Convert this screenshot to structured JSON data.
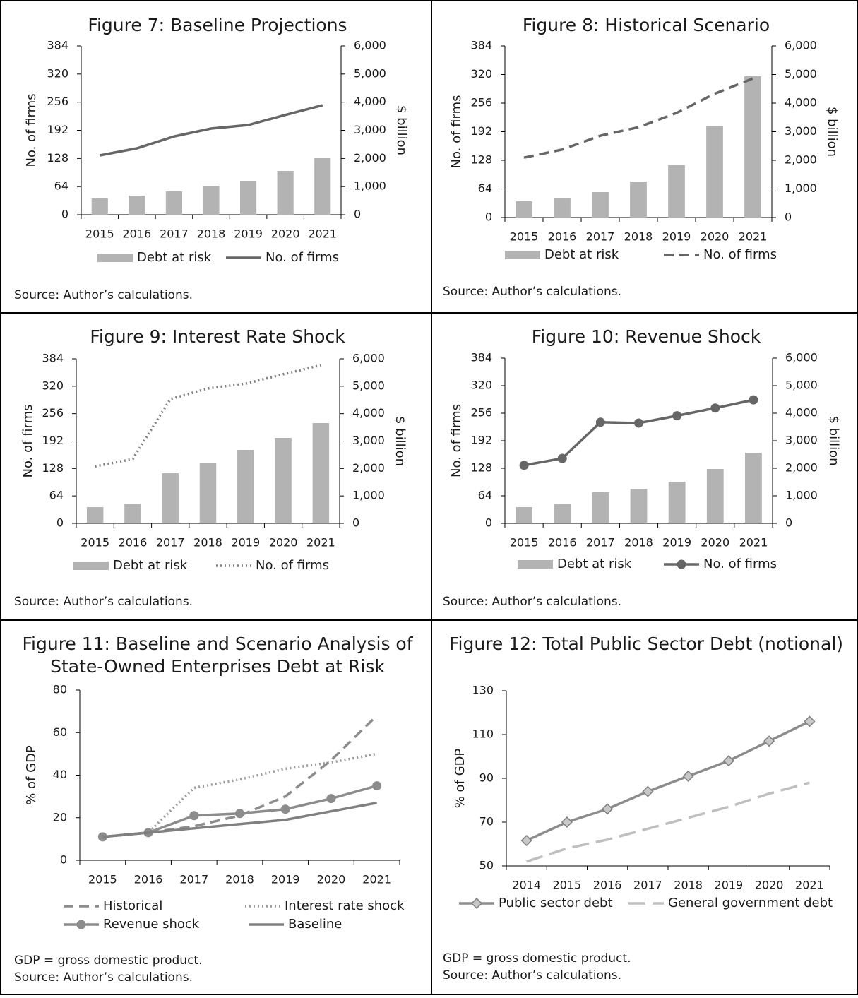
{
  "chart_data": [
    {
      "type": "combo",
      "title_lines": [
        "Figure 7: Baseline Projections"
      ],
      "categories": [
        "2015",
        "2016",
        "2017",
        "2018",
        "2019",
        "2020",
        "2021"
      ],
      "ylabel": "No. of firms",
      "y2label": "$ billion",
      "ylim": [
        0,
        384
      ],
      "yticks": [
        0,
        64,
        128,
        192,
        256,
        320,
        384
      ],
      "y2lim": [
        0,
        6000
      ],
      "y2ticks": [
        0,
        {
          "value": 1000,
          "label": "1,000"
        },
        {
          "value": 2000,
          "label": "2,000"
        },
        {
          "value": 3000,
          "label": "3,000"
        },
        {
          "value": 4000,
          "label": "4,000"
        },
        {
          "value": 5000,
          "label": "5,000"
        },
        {
          "value": 6000,
          "label": "6,000"
        }
      ],
      "series": [
        {
          "name": "Debt at risk",
          "type": "bar",
          "axis": "y2",
          "color": "#b3b3b3",
          "values": [
            577,
            678,
            828,
            1029,
            1205,
            1556,
            2008
          ]
        },
        {
          "name": "No. of firms",
          "type": "line",
          "color": "#666666",
          "dash": "solid",
          "values": [
            135,
            151,
            178,
            196,
            204,
            227,
            249
          ]
        }
      ],
      "notes": [
        "Source: Author’s calculations."
      ]
    },
    {
      "type": "combo",
      "title_lines": [
        "Figure 8: Historical Scenario"
      ],
      "categories": [
        "2015",
        "2016",
        "2017",
        "2018",
        "2019",
        "2020",
        "2021"
      ],
      "ylabel": "No. of firms",
      "y2label": "$ billion",
      "ylim": [
        0,
        384
      ],
      "yticks": [
        0,
        64,
        128,
        192,
        256,
        320,
        384
      ],
      "y2lim": [
        0,
        6000
      ],
      "y2ticks": [
        0,
        {
          "value": 1000,
          "label": "1,000"
        },
        {
          "value": 2000,
          "label": "2,000"
        },
        {
          "value": 3000,
          "label": "3,000"
        },
        {
          "value": 4000,
          "label": "4,000"
        },
        {
          "value": 5000,
          "label": "5,000"
        },
        {
          "value": 6000,
          "label": "6,000"
        }
      ],
      "series": [
        {
          "name": "Debt at risk",
          "type": "bar",
          "axis": "y2",
          "color": "#b3b3b3",
          "values": [
            568,
            691,
            889,
            1259,
            1827,
            3210,
            4938
          ]
        },
        {
          "name": "No. of firms",
          "type": "line",
          "color": "#666666",
          "dash": "dashed",
          "values": [
            134,
            152,
            183,
            202,
            234,
            277,
            311
          ]
        }
      ],
      "notes": [
        "Source: Author’s calculations."
      ]
    },
    {
      "type": "combo",
      "title_lines": [
        "Figure 9: Interest Rate Shock"
      ],
      "categories": [
        "2015",
        "2016",
        "2017",
        "2018",
        "2019",
        "2020",
        "2021"
      ],
      "ylabel": "No. of firms",
      "y2label": "$ billion",
      "ylim": [
        0,
        384
      ],
      "yticks": [
        0,
        64,
        128,
        192,
        256,
        320,
        384
      ],
      "y2lim": [
        0,
        6000
      ],
      "y2ticks": [
        0,
        {
          "value": 1000,
          "label": "1,000"
        },
        {
          "value": 2000,
          "label": "2,000"
        },
        {
          "value": 3000,
          "label": "3,000"
        },
        {
          "value": 4000,
          "label": "4,000"
        },
        {
          "value": 5000,
          "label": "5,000"
        },
        {
          "value": 6000,
          "label": "6,000"
        }
      ],
      "series": [
        {
          "name": "Debt at risk",
          "type": "bar",
          "axis": "y2",
          "color": "#b3b3b3",
          "values": [
            592,
            695,
            1828,
            2189,
            2678,
            3116,
            3657
          ]
        },
        {
          "name": "No. of firms",
          "type": "line",
          "color": "#808080",
          "dash": "dotted",
          "values": [
            133,
            150,
            290,
            315,
            326,
            348,
            369
          ]
        }
      ],
      "notes": [
        "Source: Author’s calculations."
      ]
    },
    {
      "type": "combo",
      "title_lines": [
        "Figure 10: Revenue Shock"
      ],
      "categories": [
        "2015",
        "2016",
        "2017",
        "2018",
        "2019",
        "2020",
        "2021"
      ],
      "ylabel": "No. of firms",
      "y2label": "$ billion",
      "ylim": [
        0,
        384
      ],
      "yticks": [
        0,
        64,
        128,
        192,
        256,
        320,
        384
      ],
      "y2lim": [
        0,
        6000
      ],
      "y2ticks": [
        0,
        {
          "value": 1000,
          "label": "1,000"
        },
        {
          "value": 2000,
          "label": "2,000"
        },
        {
          "value": 3000,
          "label": "3,000"
        },
        {
          "value": 4000,
          "label": "4,000"
        },
        {
          "value": 5000,
          "label": "5,000"
        },
        {
          "value": 6000,
          "label": "6,000"
        }
      ],
      "series": [
        {
          "name": "Debt at risk",
          "type": "bar",
          "axis": "y2",
          "color": "#b3b3b3",
          "values": [
            590,
            692,
            1128,
            1256,
            1513,
            1974,
            2564
          ]
        },
        {
          "name": "No. of firms",
          "type": "line",
          "color": "#666666",
          "dash": "solid",
          "marker": "circle",
          "values": [
            135,
            151,
            235,
            233,
            250,
            268,
            287
          ]
        }
      ],
      "notes": [
        "Source: Author’s calculations."
      ]
    },
    {
      "type": "line",
      "title_lines": [
        "Figure 11: Baseline and Scenario Analysis of",
        "State-Owned Enterprises Debt at Risk"
      ],
      "categories": [
        "2015",
        "2016",
        "2017",
        "2018",
        "2019",
        "2020",
        "2021"
      ],
      "ylabel": "% of GDP",
      "ylim": [
        0,
        80
      ],
      "yticks": [
        0,
        20,
        40,
        60,
        80
      ],
      "series": [
        {
          "name": "Historical",
          "type": "line",
          "color": "#8c8c8c",
          "dash": "dashed",
          "values": [
            11,
            13,
            16,
            21,
            30,
            47,
            68
          ]
        },
        {
          "name": "Interest rate shock",
          "type": "line",
          "color": "#999999",
          "dash": "dotted",
          "values": [
            11,
            13,
            34,
            38,
            43,
            46,
            50
          ]
        },
        {
          "name": "Revenue shock",
          "type": "line",
          "color": "#8c8c8c",
          "dash": "solid",
          "marker": "circle",
          "values": [
            11,
            13,
            21,
            22,
            24,
            29,
            35
          ]
        },
        {
          "name": "Baseline",
          "type": "line",
          "color": "#808080",
          "dash": "solid",
          "values": [
            11,
            13,
            15,
            17,
            19,
            23,
            27
          ]
        }
      ],
      "notes": [
        "GDP = gross domestic product.",
        "Source: Author’s calculations."
      ]
    },
    {
      "type": "line",
      "title_lines": [
        "Figure 12: Total Public Sector Debt (notional)"
      ],
      "categories": [
        "2014",
        "2015",
        "2016",
        "2017",
        "2018",
        "2019",
        "2020",
        "2021"
      ],
      "ylabel": "% of GDP",
      "ylim": [
        50,
        130
      ],
      "yticks": [
        50,
        70,
        90,
        110,
        130
      ],
      "series": [
        {
          "name": "Public sector debt",
          "type": "line",
          "color": "#8c8c8c",
          "dash": "solid",
          "marker": "diamond",
          "values": [
            61.6,
            70,
            76,
            84,
            91,
            98,
            107,
            116
          ]
        },
        {
          "name": "General government debt",
          "type": "line",
          "color": "#bfbfbf",
          "dash": "longdash",
          "values": [
            52,
            58,
            62,
            67,
            72,
            77,
            83,
            88
          ]
        }
      ],
      "notes": [
        "GDP = gross domestic product.",
        "Source: Author’s calculations."
      ]
    }
  ]
}
